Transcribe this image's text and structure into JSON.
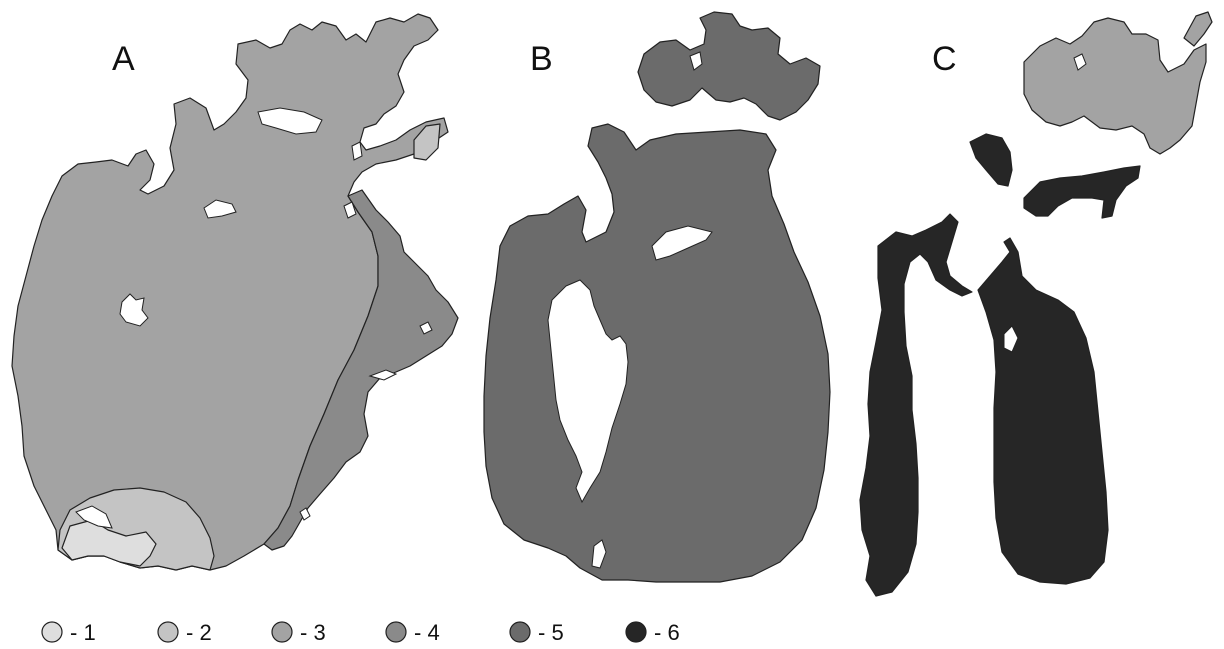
{
  "panels": [
    {
      "letter": "A"
    },
    {
      "letter": "B"
    },
    {
      "letter": "C"
    }
  ],
  "classes": [
    {
      "label": "- 1",
      "color": "#dedede"
    },
    {
      "label": "- 2",
      "color": "#c4c4c4"
    },
    {
      "label": "- 3",
      "color": "#a3a3a3"
    },
    {
      "label": "- 4",
      "color": "#8a8a8a"
    },
    {
      "label": "- 5",
      "color": "#6b6b6b"
    },
    {
      "label": "- 6",
      "color": "#262626"
    }
  ]
}
